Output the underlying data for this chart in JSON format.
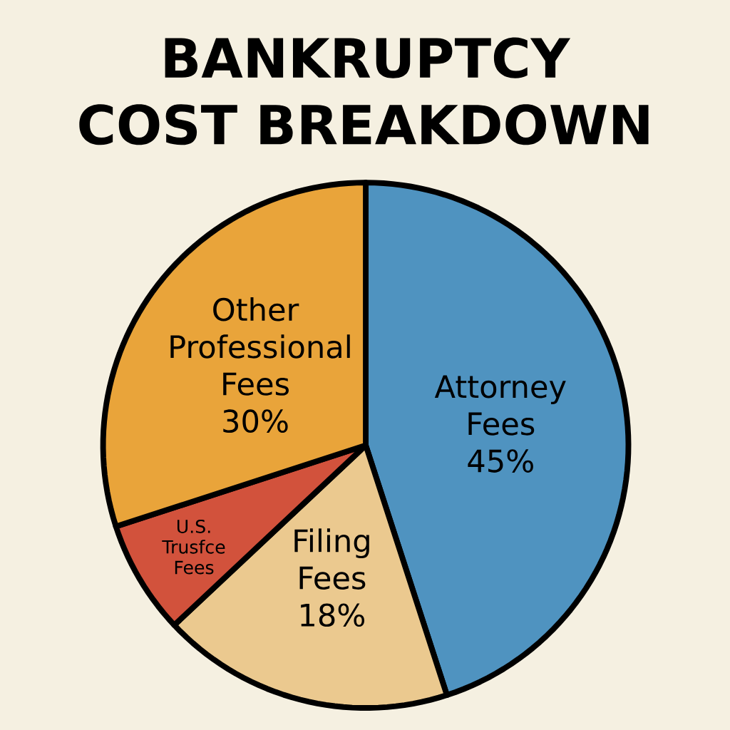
{
  "chart_data": {
    "type": "pie",
    "title": "BANKRUPTCY COST BREAKDOWN",
    "categories": [
      "Attorney Fees",
      "Filing Fees",
      "U.S. Trusfce Fees",
      "Other Professional Fees"
    ],
    "values": [
      45,
      18,
      7,
      30
    ],
    "value_labels": [
      "45%",
      "18%",
      null,
      "30%"
    ],
    "colors": [
      "#4f93c0",
      "#ebc98f",
      "#d2523c",
      "#e9a43a"
    ]
  }
}
